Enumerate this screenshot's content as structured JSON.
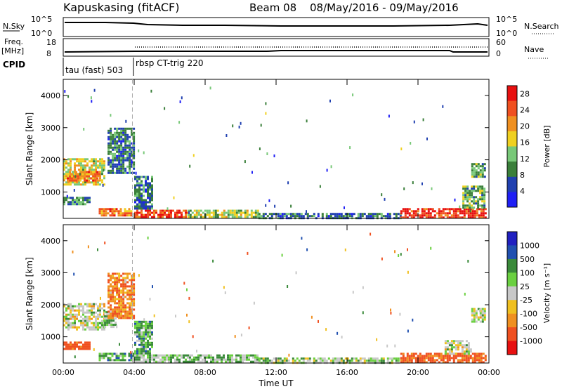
{
  "header": {
    "station": "Kapuskasing (fitACF)",
    "beam": "Beam 08",
    "dates": "08/May/2016 - 09/May/2016"
  },
  "top_panels": {
    "nsky_label": "N.Sky",
    "nsky_ticks": [
      "10^5",
      "10^0"
    ],
    "nsearch_label": "N.Search",
    "nsearch_ticks": [
      "10^5",
      "10^0"
    ],
    "freq_label": "Freq.",
    "freq_unit": "[MHz]",
    "freq_ticks": [
      "18",
      "8"
    ],
    "nave_label": "Nave",
    "nave_ticks": [
      "60",
      "0"
    ],
    "cpid_label": "CPID",
    "cpid_segments": [
      {
        "label": "tau (fast) 503",
        "start_h": 0
      },
      {
        "label": "rbsp CT-trig 220",
        "start_h": 4
      }
    ]
  },
  "colors": {
    "power_scale": [
      "#1f1ff5",
      "#2040b0",
      "#3a7f3a",
      "#78c878",
      "#f0d020",
      "#f09020",
      "#f05020",
      "#e81010"
    ],
    "velocity_scale": [
      "#e81010",
      "#f05020",
      "#f09020",
      "#f0c020",
      "#c8c8c8",
      "#6ad040",
      "#3a8a3a",
      "#2050b0",
      "#2020c0"
    ]
  },
  "chart_data": [
    {
      "type": "heatmap",
      "name": "power-panel",
      "ylabel": "Slant Range [km]",
      "xlabel": "Time UT",
      "xlim": [
        0,
        24
      ],
      "ylim": [
        180,
        4500
      ],
      "yticks": [
        "1000",
        "2000",
        "3000",
        "4000"
      ],
      "xticks": [
        "00:00",
        "04:00",
        "08:00",
        "12:00",
        "16:00",
        "20:00",
        "00:00"
      ],
      "colorbar": {
        "title": "Power [dB]",
        "ticks": [
          "4",
          "8",
          "12",
          "16",
          "20",
          "24",
          "28"
        ],
        "range": [
          0,
          30
        ]
      },
      "regions": [
        {
          "t": [
            0,
            2.3
          ],
          "r": [
            1250,
            2050
          ],
          "level": 16
        },
        {
          "t": [
            0.2,
            2.0
          ],
          "r": [
            1350,
            1650
          ],
          "level": 22
        },
        {
          "t": [
            0,
            1.5
          ],
          "r": [
            650,
            850
          ],
          "level": 10
        },
        {
          "t": [
            2.0,
            3.8
          ],
          "r": [
            300,
            500
          ],
          "level": 22
        },
        {
          "t": [
            4.0,
            7.0
          ],
          "r": [
            200,
            450
          ],
          "level": 26
        },
        {
          "t": [
            7.0,
            11.0
          ],
          "r": [
            200,
            450
          ],
          "level": 14
        },
        {
          "t": [
            11.0,
            19.0
          ],
          "r": [
            200,
            350
          ],
          "level": 8
        },
        {
          "t": [
            19.0,
            23.8
          ],
          "r": [
            200,
            500
          ],
          "level": 26
        },
        {
          "t": [
            22.5,
            23.8
          ],
          "r": [
            500,
            1200
          ],
          "level": 12
        },
        {
          "t": [
            23.0,
            23.8
          ],
          "r": [
            1500,
            1900
          ],
          "level": 12
        },
        {
          "t": [
            2.5,
            4.0
          ],
          "r": [
            1600,
            3000
          ],
          "level": 8
        },
        {
          "t": [
            4.0,
            5.0
          ],
          "r": [
            500,
            1500
          ],
          "level": 8
        }
      ]
    },
    {
      "type": "heatmap",
      "name": "velocity-panel",
      "ylabel": "Slant Range [km]",
      "xlabel": "Time UT",
      "xlim": [
        0,
        24
      ],
      "ylim": [
        180,
        4500
      ],
      "yticks": [
        "1000",
        "2000",
        "3000",
        "4000"
      ],
      "xticks": [
        "00:00",
        "04:00",
        "08:00",
        "12:00",
        "16:00",
        "20:00",
        "00:00"
      ],
      "colorbar": {
        "title": "Velocity [m s^-1]",
        "ticks": [
          "1000",
          "500",
          "100",
          "25",
          "-25",
          "-100",
          "-500",
          "-1000"
        ]
      },
      "regions": [
        {
          "t": [
            0,
            2.3
          ],
          "r": [
            1250,
            2050
          ],
          "level": 0
        },
        {
          "t": [
            2.3,
            3.0
          ],
          "r": [
            1300,
            1800
          ],
          "level": 40
        },
        {
          "t": [
            0,
            1.5
          ],
          "r": [
            650,
            850
          ],
          "level": -150
        },
        {
          "t": [
            2.0,
            4.0
          ],
          "r": [
            250,
            500
          ],
          "level": 60
        },
        {
          "t": [
            4.0,
            11.0
          ],
          "r": [
            200,
            450
          ],
          "level": 40
        },
        {
          "t": [
            11.0,
            19.0
          ],
          "r": [
            200,
            350
          ],
          "level": 20
        },
        {
          "t": [
            19.0,
            23.8
          ],
          "r": [
            200,
            500
          ],
          "level": -120
        },
        {
          "t": [
            21.5,
            23.0
          ],
          "r": [
            500,
            900
          ],
          "level": 0
        },
        {
          "t": [
            23.0,
            23.8
          ],
          "r": [
            1500,
            1900
          ],
          "level": 0
        },
        {
          "t": [
            2.5,
            4.0
          ],
          "r": [
            1600,
            3000
          ],
          "level": -80
        },
        {
          "t": [
            4.0,
            5.0
          ],
          "r": [
            500,
            1500
          ],
          "level": 60
        }
      ]
    }
  ]
}
